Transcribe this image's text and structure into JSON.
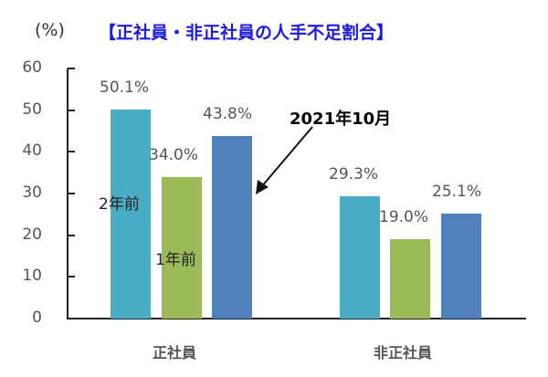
{
  "header": {
    "unit": "(%)",
    "title": "【正社員・非正社員の人手不足割合】"
  },
  "colors": {
    "two_years_ago": "#4bacc6",
    "one_year_ago": "#9bbb59",
    "oct_2021": "#4f81bd",
    "title": "#1a1ae0"
  },
  "annotation": {
    "text": "2021年10月",
    "series_labels": [
      "2年前",
      "1年前"
    ]
  },
  "chart_data": {
    "type": "bar",
    "title": "【正社員・非正社員の人手不足割合】",
    "ylabel": "(%)",
    "xlabel": "",
    "ylim": [
      0,
      60
    ],
    "yticks": [
      "0",
      "10",
      "20",
      "30",
      "40",
      "50",
      "60"
    ],
    "categories": [
      "正社員",
      "非正社員"
    ],
    "series": [
      {
        "name": "2年前",
        "values": [
          50.1,
          29.3
        ],
        "labels": [
          "50.1%",
          "29.3%"
        ]
      },
      {
        "name": "1年前",
        "values": [
          34.0,
          19.0
        ],
        "labels": [
          "34.0%",
          "19.0%"
        ]
      },
      {
        "name": "2021年10月",
        "values": [
          43.8,
          25.1
        ],
        "labels": [
          "43.8%",
          "25.1%"
        ]
      }
    ],
    "grid": false,
    "legend": "inline annotations"
  }
}
